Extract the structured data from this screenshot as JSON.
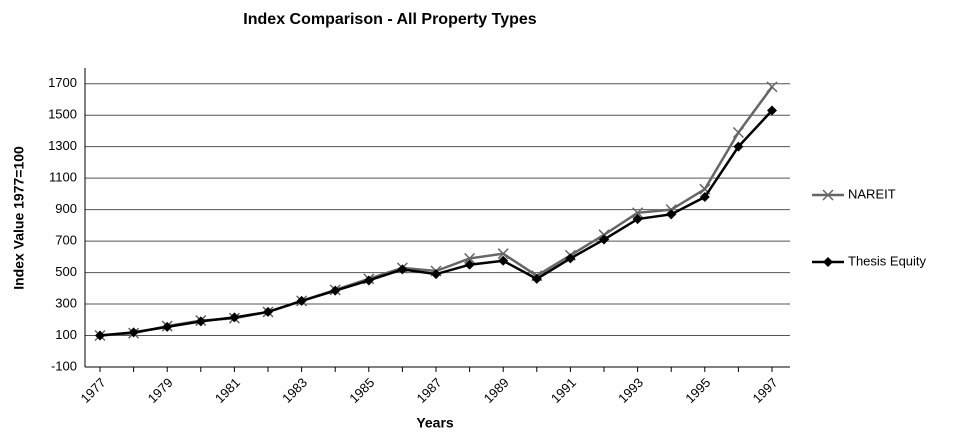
{
  "chart_data": {
    "type": "line",
    "title": "Index Comparison - All Property Types",
    "x_label": "Years",
    "y_label": "Index Value  1977=100",
    "categories": [
      "1977",
      null,
      "1979",
      null,
      "1981",
      null,
      "1983",
      null,
      "1985",
      null,
      "1987",
      null,
      "1989",
      null,
      "1991",
      null,
      "1993",
      null,
      "1995",
      null,
      "1997"
    ],
    "series": [
      {
        "name": "NAREIT",
        "color": "#666666",
        "marker": "x",
        "values": [
          100,
          115,
          160,
          195,
          210,
          250,
          320,
          390,
          460,
          530,
          510,
          590,
          620,
          480,
          610,
          740,
          880,
          900,
          1030,
          1390,
          1680
        ]
      },
      {
        "name": "Thesis Equity",
        "color": "#000000",
        "marker": "diamond",
        "values": [
          100,
          120,
          155,
          190,
          215,
          250,
          320,
          385,
          450,
          520,
          490,
          550,
          575,
          460,
          590,
          710,
          840,
          870,
          980,
          1300,
          1530
        ]
      }
    ],
    "ylim": [
      -100,
      1800
    ],
    "yticks": [
      -100,
      100,
      300,
      500,
      700,
      900,
      1100,
      1300,
      1500,
      1700
    ],
    "grid": true
  }
}
